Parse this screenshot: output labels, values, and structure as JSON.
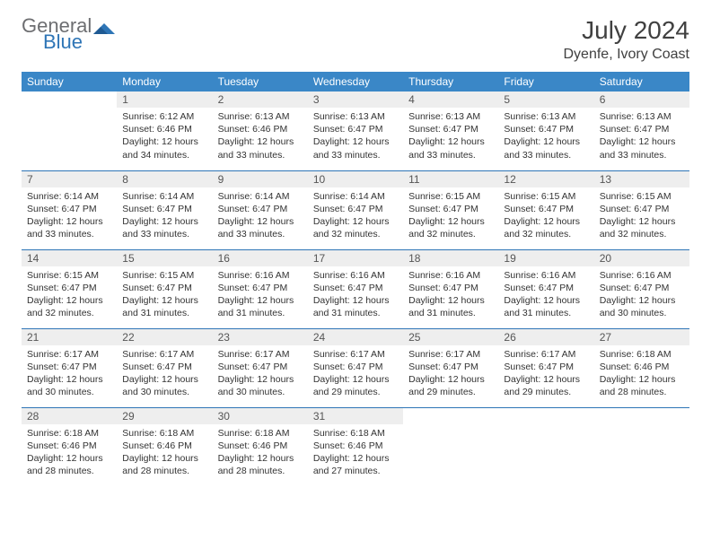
{
  "logo": {
    "general": "General",
    "blue": "Blue"
  },
  "title": "July 2024",
  "location": "Dyenfe, Ivory Coast",
  "dayHeaders": [
    "Sunday",
    "Monday",
    "Tuesday",
    "Wednesday",
    "Thursday",
    "Friday",
    "Saturday"
  ],
  "colors": {
    "header_bg": "#3a87c7",
    "header_text": "#ffffff",
    "daynum_bg": "#eeeeee",
    "row_border": "#2e75b6",
    "logo_gray": "#6d6e71",
    "logo_blue": "#2e75b6"
  },
  "weeks": [
    [
      {
        "n": "",
        "sunrise": "",
        "sunset": "",
        "daylight": ""
      },
      {
        "n": "1",
        "sunrise": "Sunrise: 6:12 AM",
        "sunset": "Sunset: 6:46 PM",
        "daylight": "Daylight: 12 hours and 34 minutes."
      },
      {
        "n": "2",
        "sunrise": "Sunrise: 6:13 AM",
        "sunset": "Sunset: 6:46 PM",
        "daylight": "Daylight: 12 hours and 33 minutes."
      },
      {
        "n": "3",
        "sunrise": "Sunrise: 6:13 AM",
        "sunset": "Sunset: 6:47 PM",
        "daylight": "Daylight: 12 hours and 33 minutes."
      },
      {
        "n": "4",
        "sunrise": "Sunrise: 6:13 AM",
        "sunset": "Sunset: 6:47 PM",
        "daylight": "Daylight: 12 hours and 33 minutes."
      },
      {
        "n": "5",
        "sunrise": "Sunrise: 6:13 AM",
        "sunset": "Sunset: 6:47 PM",
        "daylight": "Daylight: 12 hours and 33 minutes."
      },
      {
        "n": "6",
        "sunrise": "Sunrise: 6:13 AM",
        "sunset": "Sunset: 6:47 PM",
        "daylight": "Daylight: 12 hours and 33 minutes."
      }
    ],
    [
      {
        "n": "7",
        "sunrise": "Sunrise: 6:14 AM",
        "sunset": "Sunset: 6:47 PM",
        "daylight": "Daylight: 12 hours and 33 minutes."
      },
      {
        "n": "8",
        "sunrise": "Sunrise: 6:14 AM",
        "sunset": "Sunset: 6:47 PM",
        "daylight": "Daylight: 12 hours and 33 minutes."
      },
      {
        "n": "9",
        "sunrise": "Sunrise: 6:14 AM",
        "sunset": "Sunset: 6:47 PM",
        "daylight": "Daylight: 12 hours and 33 minutes."
      },
      {
        "n": "10",
        "sunrise": "Sunrise: 6:14 AM",
        "sunset": "Sunset: 6:47 PM",
        "daylight": "Daylight: 12 hours and 32 minutes."
      },
      {
        "n": "11",
        "sunrise": "Sunrise: 6:15 AM",
        "sunset": "Sunset: 6:47 PM",
        "daylight": "Daylight: 12 hours and 32 minutes."
      },
      {
        "n": "12",
        "sunrise": "Sunrise: 6:15 AM",
        "sunset": "Sunset: 6:47 PM",
        "daylight": "Daylight: 12 hours and 32 minutes."
      },
      {
        "n": "13",
        "sunrise": "Sunrise: 6:15 AM",
        "sunset": "Sunset: 6:47 PM",
        "daylight": "Daylight: 12 hours and 32 minutes."
      }
    ],
    [
      {
        "n": "14",
        "sunrise": "Sunrise: 6:15 AM",
        "sunset": "Sunset: 6:47 PM",
        "daylight": "Daylight: 12 hours and 32 minutes."
      },
      {
        "n": "15",
        "sunrise": "Sunrise: 6:15 AM",
        "sunset": "Sunset: 6:47 PM",
        "daylight": "Daylight: 12 hours and 31 minutes."
      },
      {
        "n": "16",
        "sunrise": "Sunrise: 6:16 AM",
        "sunset": "Sunset: 6:47 PM",
        "daylight": "Daylight: 12 hours and 31 minutes."
      },
      {
        "n": "17",
        "sunrise": "Sunrise: 6:16 AM",
        "sunset": "Sunset: 6:47 PM",
        "daylight": "Daylight: 12 hours and 31 minutes."
      },
      {
        "n": "18",
        "sunrise": "Sunrise: 6:16 AM",
        "sunset": "Sunset: 6:47 PM",
        "daylight": "Daylight: 12 hours and 31 minutes."
      },
      {
        "n": "19",
        "sunrise": "Sunrise: 6:16 AM",
        "sunset": "Sunset: 6:47 PM",
        "daylight": "Daylight: 12 hours and 31 minutes."
      },
      {
        "n": "20",
        "sunrise": "Sunrise: 6:16 AM",
        "sunset": "Sunset: 6:47 PM",
        "daylight": "Daylight: 12 hours and 30 minutes."
      }
    ],
    [
      {
        "n": "21",
        "sunrise": "Sunrise: 6:17 AM",
        "sunset": "Sunset: 6:47 PM",
        "daylight": "Daylight: 12 hours and 30 minutes."
      },
      {
        "n": "22",
        "sunrise": "Sunrise: 6:17 AM",
        "sunset": "Sunset: 6:47 PM",
        "daylight": "Daylight: 12 hours and 30 minutes."
      },
      {
        "n": "23",
        "sunrise": "Sunrise: 6:17 AM",
        "sunset": "Sunset: 6:47 PM",
        "daylight": "Daylight: 12 hours and 30 minutes."
      },
      {
        "n": "24",
        "sunrise": "Sunrise: 6:17 AM",
        "sunset": "Sunset: 6:47 PM",
        "daylight": "Daylight: 12 hours and 29 minutes."
      },
      {
        "n": "25",
        "sunrise": "Sunrise: 6:17 AM",
        "sunset": "Sunset: 6:47 PM",
        "daylight": "Daylight: 12 hours and 29 minutes."
      },
      {
        "n": "26",
        "sunrise": "Sunrise: 6:17 AM",
        "sunset": "Sunset: 6:47 PM",
        "daylight": "Daylight: 12 hours and 29 minutes."
      },
      {
        "n": "27",
        "sunrise": "Sunrise: 6:18 AM",
        "sunset": "Sunset: 6:46 PM",
        "daylight": "Daylight: 12 hours and 28 minutes."
      }
    ],
    [
      {
        "n": "28",
        "sunrise": "Sunrise: 6:18 AM",
        "sunset": "Sunset: 6:46 PM",
        "daylight": "Daylight: 12 hours and 28 minutes."
      },
      {
        "n": "29",
        "sunrise": "Sunrise: 6:18 AM",
        "sunset": "Sunset: 6:46 PM",
        "daylight": "Daylight: 12 hours and 28 minutes."
      },
      {
        "n": "30",
        "sunrise": "Sunrise: 6:18 AM",
        "sunset": "Sunset: 6:46 PM",
        "daylight": "Daylight: 12 hours and 28 minutes."
      },
      {
        "n": "31",
        "sunrise": "Sunrise: 6:18 AM",
        "sunset": "Sunset: 6:46 PM",
        "daylight": "Daylight: 12 hours and 27 minutes."
      },
      {
        "n": "",
        "sunrise": "",
        "sunset": "",
        "daylight": ""
      },
      {
        "n": "",
        "sunrise": "",
        "sunset": "",
        "daylight": ""
      },
      {
        "n": "",
        "sunrise": "",
        "sunset": "",
        "daylight": ""
      }
    ]
  ]
}
